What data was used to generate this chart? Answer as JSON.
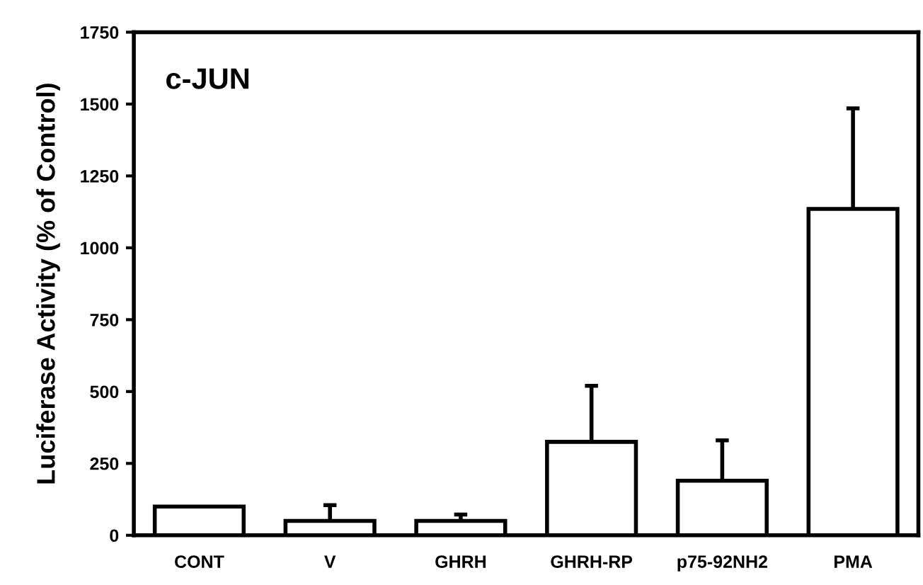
{
  "chart_data": {
    "type": "bar",
    "title": "c-JUN",
    "ylabel": "Luciferase Activity (% of Control)",
    "categories": [
      "CONT",
      "V",
      "GHRH",
      "GHRH-RP",
      "p75-92NH2",
      "PMA"
    ],
    "values": [
      100,
      50,
      50,
      325,
      190,
      1135
    ],
    "errors": [
      null,
      [
        50,
        105
      ],
      [
        50,
        72
      ],
      [
        325,
        520
      ],
      [
        190,
        330
      ],
      [
        1135,
        1485
      ]
    ],
    "color": "#ffffff",
    "ylim": [
      0,
      1750
    ],
    "yticks": [
      0,
      250,
      500,
      750,
      1000,
      1250,
      1500,
      1750
    ],
    "grid": false
  }
}
